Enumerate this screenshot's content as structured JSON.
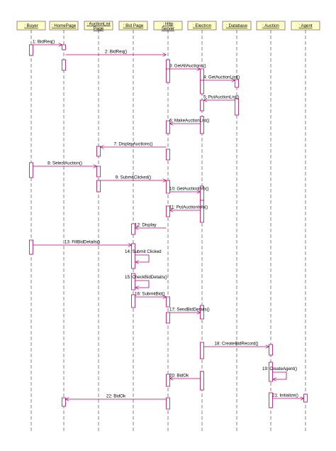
{
  "participants": [
    {
      "id": "buyer",
      "label": ": Buyer"
    },
    {
      "id": "homepage",
      "label": ": HomePage"
    },
    {
      "id": "auctionlistpage",
      "label": ": AuctionList Page"
    },
    {
      "id": "bidpage",
      "label": ": Bid Page"
    },
    {
      "id": "httpserver",
      "label": ": Http Server"
    },
    {
      "id": "electron",
      "label": ": Electron"
    },
    {
      "id": "database",
      "label": ": Database"
    },
    {
      "id": "auction",
      "label": ": Auction"
    },
    {
      "id": "agent",
      "label": ": Agent"
    }
  ],
  "messages": [
    {
      "label": "1: BidReq()",
      "from": "buyer",
      "to": "homepage"
    },
    {
      "label": "2: BidReq()",
      "from": "homepage",
      "to": "httpserver"
    },
    {
      "label": "3: GetAllAuctions()",
      "from": "httpserver",
      "to": "electron"
    },
    {
      "label": "4: GetAuctionList()",
      "from": "electron",
      "to": "database"
    },
    {
      "label": "5: PutAuctionList()",
      "from": "database",
      "to": "electron"
    },
    {
      "label": "6: MakeAuctionList()",
      "from": "electron",
      "to": "httpserver"
    },
    {
      "label": "7: DisplayAuctions()",
      "from": "httpserver",
      "to": "auctionlistpage"
    },
    {
      "label": "8: SelectAuction()",
      "from": "buyer",
      "to": "auctionlistpage"
    },
    {
      "label": "9: SubmitClicked()",
      "from": "auctionlistpage",
      "to": "httpserver"
    },
    {
      "label": "10: GetAuctionInfo()",
      "from": "httpserver",
      "to": "electron"
    },
    {
      "label": "11: PutAuctionInfo()",
      "from": "electron",
      "to": "httpserver"
    },
    {
      "label": "12: Display",
      "from": "httpserver",
      "to": "bidpage"
    },
    {
      "label": "13: FillBidDetails()",
      "from": "buyer",
      "to": "bidpage"
    },
    {
      "label": "14: Submit Clicked",
      "from": "bidpage",
      "to": "bidpage"
    },
    {
      "label": "15: CheckBidDetails()",
      "from": "bidpage",
      "to": "bidpage"
    },
    {
      "label": "16: SubmitBid()",
      "from": "bidpage",
      "to": "httpserver"
    },
    {
      "label": "17: SendBidDetails()",
      "from": "httpserver",
      "to": "electron"
    },
    {
      "label": "18: CreateBidRecord()",
      "from": "electron",
      "to": "auction"
    },
    {
      "label": "19: CreateAgent()",
      "from": "auction",
      "to": "auction"
    },
    {
      "label": "20: BidOk",
      "from": "electron",
      "to": "httpserver"
    },
    {
      "label": "21: Initialize()",
      "from": "auction",
      "to": "agent"
    },
    {
      "label": "22: BidOk",
      "from": "httpserver",
      "to": "homepage"
    }
  ],
  "colors": {
    "line": "#b40074",
    "box_fill": "#ffffc8",
    "box_stroke": "#7a5060",
    "lifeline": "#666666",
    "text": "#000000"
  }
}
